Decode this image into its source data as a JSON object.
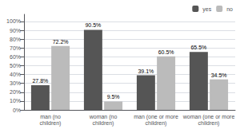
{
  "chart_data": {
    "type": "bar",
    "categories": [
      "man (no\nchildren)",
      "woman (no\nchildren)",
      "man (one or more\nchildren)",
      "woman (one or more\nchildren)"
    ],
    "series": [
      {
        "name": "yes",
        "color": "#555555",
        "values": [
          27.8,
          90.5,
          39.1,
          65.5
        ],
        "value_labels": [
          "27.8%",
          "90.5%",
          "39.1%",
          "65.5%"
        ]
      },
      {
        "name": "no",
        "color": "#bbbbbb",
        "values": [
          72.2,
          9.5,
          60.5,
          34.5
        ],
        "value_labels": [
          "72.2%",
          "9.5%",
          "60.5%",
          "34.5%"
        ]
      }
    ],
    "ylim": [
      0,
      108
    ],
    "yticks": [
      {
        "value": 0,
        "label": "0%"
      },
      {
        "value": 10,
        "label": "10%"
      },
      {
        "value": 20,
        "label": "20%"
      },
      {
        "value": 30,
        "label": "30%"
      },
      {
        "value": 40,
        "label": "40%"
      },
      {
        "value": 50,
        "label": "50%"
      },
      {
        "value": 60,
        "label": "60%"
      },
      {
        "value": 70,
        "label": "70%"
      },
      {
        "value": 80,
        "label": "80%"
      },
      {
        "value": 90,
        "label": "90%"
      },
      {
        "value": 100,
        "label": "100%"
      }
    ],
    "grid": true,
    "legend": "upper right",
    "data_labels": true
  }
}
